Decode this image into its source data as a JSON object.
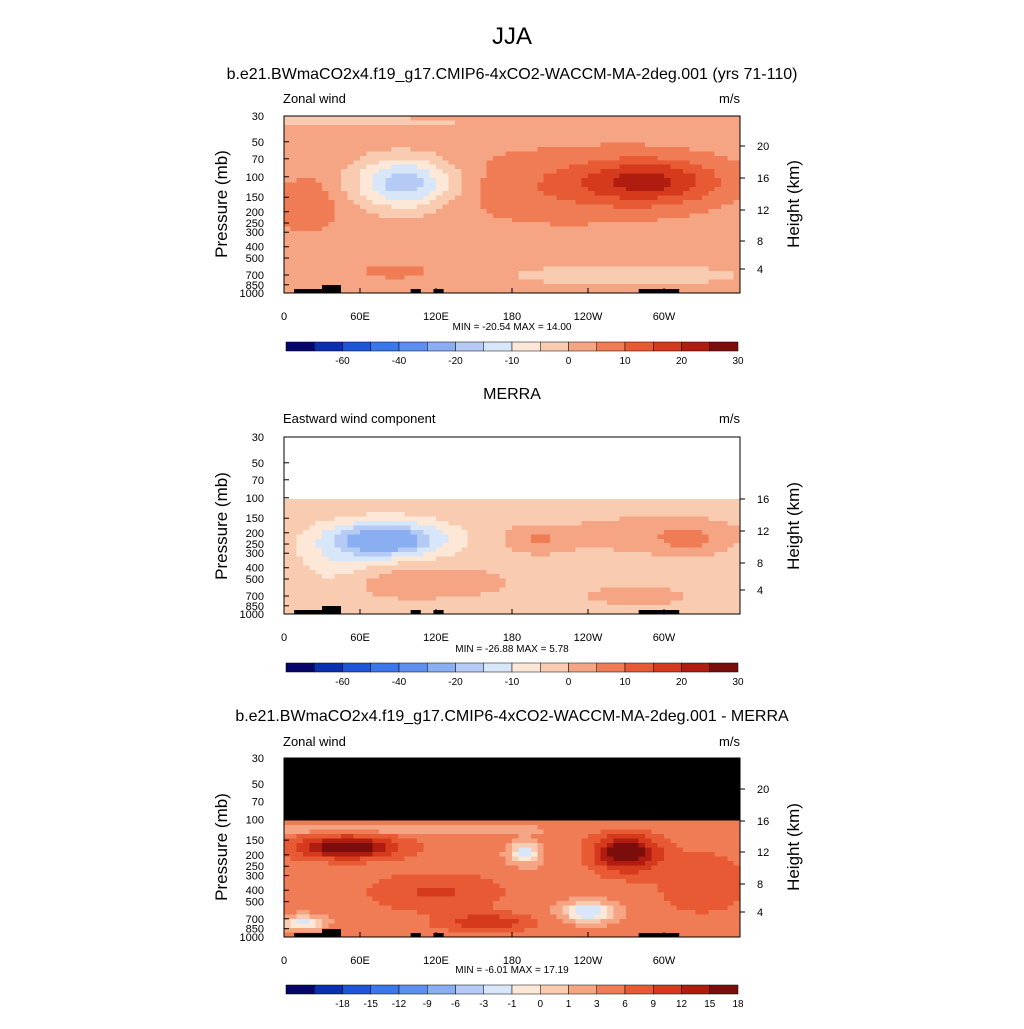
{
  "title": "JJA",
  "chart_data": [
    {
      "type": "heatmap",
      "panel_title": "b.e21.BWmaCO2x4.f19_g17.CMIP6-4xCO2-WACCM-MA-2deg.001 (yrs 71-110)",
      "left_label": "Zonal wind",
      "units": "m/s",
      "ylabel": "Pressure (mb)",
      "y2label": "Height (km)",
      "x_ticks": [
        "0",
        "60E",
        "120E",
        "180",
        "120W",
        "60W"
      ],
      "y_ticks": [
        "30",
        "50",
        "70",
        "100",
        "150",
        "200",
        "250",
        "300",
        "400",
        "500",
        "700",
        "850",
        "1000"
      ],
      "y2_ticks": [
        "20",
        "16",
        "12",
        "8",
        "4"
      ],
      "stats": "MIN = -20.54  MAX =  14.00",
      "min": -20.54,
      "max": 14.0,
      "colorbar_labels": [
        "-60",
        "-40",
        "-20",
        "-10",
        "0",
        "10",
        "20",
        "30"
      ],
      "contour_levels": [
        -70,
        -60,
        -50,
        -40,
        -30,
        -20,
        -15,
        -10,
        -5,
        0,
        5,
        10,
        15,
        20,
        25,
        30
      ]
    },
    {
      "type": "heatmap",
      "panel_title": "MERRA",
      "left_label": "Eastward wind component",
      "units": "m/s",
      "ylabel": "Pressure (mb)",
      "y2label": "Height (km)",
      "x_ticks": [
        "0",
        "60E",
        "120E",
        "180",
        "120W",
        "60W"
      ],
      "y_ticks": [
        "30",
        "50",
        "70",
        "100",
        "150",
        "200",
        "250",
        "300",
        "400",
        "500",
        "700",
        "850",
        "1000"
      ],
      "y2_ticks": [
        "16",
        "12",
        "8",
        "4"
      ],
      "stats": "MIN = -26.88  MAX =  5.78",
      "min": -26.88,
      "max": 5.78,
      "colorbar_labels": [
        "-60",
        "-40",
        "-20",
        "-10",
        "0",
        "10",
        "20",
        "30"
      ],
      "contour_levels": [
        -70,
        -60,
        -50,
        -40,
        -30,
        -20,
        -15,
        -10,
        -5,
        0,
        5,
        10,
        15,
        20,
        25,
        30
      ]
    },
    {
      "type": "heatmap",
      "panel_title": "b.e21.BWmaCO2x4.f19_g17.CMIP6-4xCO2-WACCM-MA-2deg.001 - MERRA",
      "left_label": "Zonal wind",
      "units": "m/s",
      "ylabel": "Pressure (mb)",
      "y2label": "Height (km)",
      "x_ticks": [
        "0",
        "60E",
        "120E",
        "180",
        "120W",
        "60W"
      ],
      "y_ticks": [
        "30",
        "50",
        "70",
        "100",
        "150",
        "200",
        "250",
        "300",
        "400",
        "500",
        "700",
        "850",
        "1000"
      ],
      "y2_ticks": [
        "20",
        "16",
        "12",
        "8",
        "4"
      ],
      "stats": "MIN = -6.01  MAX = 17.19",
      "min": -6.01,
      "max": 17.19,
      "colorbar_labels": [
        "-18",
        "-15",
        "-12",
        "-9",
        "-6",
        "-3",
        "-1",
        "0",
        "1",
        "3",
        "6",
        "9",
        "12",
        "15",
        "18"
      ],
      "contour_levels": [
        -21,
        -18,
        -15,
        -12,
        -9,
        -6,
        -3,
        -1,
        0,
        1,
        3,
        6,
        9,
        12,
        15,
        18
      ]
    }
  ],
  "colors": {
    "palette": [
      "#05056a",
      "#0a2fb0",
      "#1f55d8",
      "#3a77ea",
      "#5c8ff0",
      "#8aaef2",
      "#b5cbf5",
      "#d8e6fa",
      "#fde8d8",
      "#f9cbb0",
      "#f5a583",
      "#f07c55",
      "#e85a33",
      "#d63a1c",
      "#b01c10",
      "#7c0d0d"
    ],
    "missing": "#000000",
    "terrain": "#000000"
  }
}
